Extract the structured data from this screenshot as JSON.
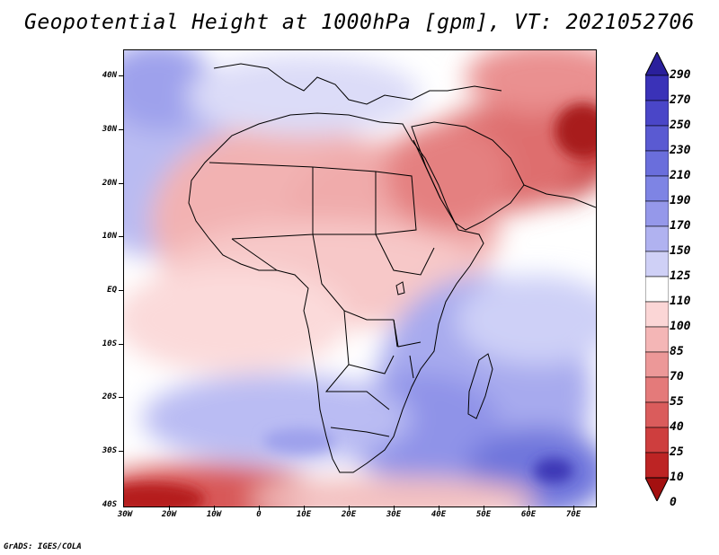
{
  "title": "Geopotential Height at 1000hPa [gpm], VT: 2021052706",
  "footer": "GrADS: IGES/COLA",
  "map": {
    "y_axis_labels": [
      "40N",
      "30N",
      "20N",
      "10N",
      "EQ",
      "10S",
      "20S",
      "30S",
      "40S"
    ],
    "x_axis_labels": [
      "30W",
      "20W",
      "10W",
      "0",
      "10E",
      "20E",
      "30E",
      "40E",
      "50E",
      "60E",
      "70E"
    ],
    "lon_range": [
      -30,
      75
    ],
    "lat_range": [
      -40,
      45
    ]
  },
  "colorbar": {
    "levels": [
      "290",
      "270",
      "250",
      "230",
      "210",
      "190",
      "170",
      "150",
      "125",
      "110",
      "100",
      "85",
      "70",
      "55",
      "40",
      "25",
      "10",
      "0"
    ],
    "colors": [
      "#2a1f9c",
      "#3a32b8",
      "#4a46c8",
      "#5a5ad2",
      "#6a6edc",
      "#7e84e4",
      "#9598ea",
      "#b0b2f0",
      "#cfd0f6",
      "#ffffff",
      "#fbd6d6",
      "#f4b6b6",
      "#ec9898",
      "#e47a7a",
      "#da5c5c",
      "#ce3e3e",
      "#bd2424",
      "#a31010"
    ]
  }
}
